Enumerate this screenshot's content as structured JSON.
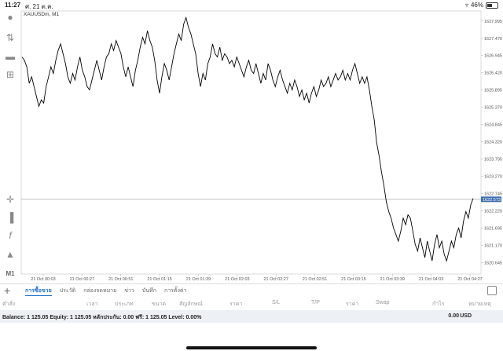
{
  "statusbar": {
    "time": "11:27",
    "date": "ศ. 21 ต.ค.",
    "battery": "46%"
  },
  "chart": {
    "symbol_label": "XAUUSDm, M1",
    "current_price": "1622.573",
    "line_color": "#000000",
    "price_tag_color": "#3e6fb0"
  },
  "chart_data": {
    "type": "line",
    "title": "",
    "symbol": "XAUUSDm, M1",
    "ylim": [
      1620.3,
      1628.3
    ],
    "yticks": [
      "1627.995",
      "1627.470",
      "1626.945",
      "1626.420",
      "1625.895",
      "1625.370",
      "1624.845",
      "1624.320",
      "1623.795",
      "1623.270",
      "1622.745",
      "1622.220",
      "1621.695",
      "1621.170",
      "1620.645"
    ],
    "xticks": [
      "21 Oct 00:03",
      "21 Oct 00:27",
      "21 Oct 00:51",
      "21 Oct 01:15",
      "21 Oct 01:39",
      "21 Oct 02:03",
      "21 Oct 02:27",
      "21 Oct 02:51",
      "21 Oct 03:15",
      "21 Oct 03:39",
      "21 Oct 04:03",
      "21 Oct 04:27"
    ],
    "current_price": 1622.573,
    "values": [
      1626.9,
      1626.8,
      1626.6,
      1626.1,
      1626.3,
      1626.0,
      1625.7,
      1625.4,
      1625.6,
      1625.5,
      1626.0,
      1626.3,
      1626.6,
      1626.4,
      1626.8,
      1627.1,
      1627.3,
      1627.0,
      1626.7,
      1626.3,
      1626.1,
      1626.4,
      1626.2,
      1626.6,
      1626.9,
      1626.5,
      1626.3,
      1626.0,
      1625.9,
      1626.2,
      1626.5,
      1626.8,
      1626.5,
      1626.2,
      1626.6,
      1626.9,
      1627.0,
      1627.3,
      1627.1,
      1627.4,
      1627.2,
      1627.0,
      1626.6,
      1626.3,
      1626.6,
      1626.3,
      1626.0,
      1626.5,
      1626.8,
      1627.2,
      1627.5,
      1627.3,
      1627.7,
      1627.4,
      1627.2,
      1626.8,
      1626.2,
      1625.8,
      1626.3,
      1626.7,
      1626.5,
      1626.2,
      1626.6,
      1627.0,
      1627.3,
      1627.6,
      1627.4,
      1627.9,
      1628.1,
      1627.8,
      1627.6,
      1627.3,
      1627.0,
      1626.4,
      1626.0,
      1626.4,
      1626.2,
      1626.7,
      1626.9,
      1627.3,
      1627.0,
      1626.9,
      1627.2,
      1626.8,
      1627.0,
      1626.9,
      1626.7,
      1626.8,
      1626.6,
      1626.9,
      1626.7,
      1626.5,
      1626.3,
      1626.6,
      1626.8,
      1626.5,
      1626.4,
      1626.7,
      1626.4,
      1626.1,
      1626.4,
      1626.2,
      1626.7,
      1626.5,
      1626.2,
      1626.0,
      1626.3,
      1626.5,
      1626.2,
      1626.0,
      1625.8,
      1626.1,
      1625.9,
      1626.2,
      1626.0,
      1625.7,
      1625.9,
      1625.6,
      1625.8,
      1625.5,
      1625.8,
      1626.0,
      1625.7,
      1625.9,
      1626.2,
      1626.0,
      1626.1,
      1626.3,
      1626.0,
      1626.2,
      1626.4,
      1626.2,
      1626.3,
      1626.5,
      1626.2,
      1626.4,
      1626.2,
      1626.5,
      1626.7,
      1626.4,
      1626.1,
      1626.3,
      1626.1,
      1626.3,
      1625.9,
      1625.4,
      1625.0,
      1624.3,
      1623.9,
      1623.4,
      1623.0,
      1622.5,
      1622.2,
      1622.0,
      1621.7,
      1621.5,
      1621.3,
      1621.6,
      1622.0,
      1621.8,
      1622.1,
      1622.0,
      1621.6,
      1621.2,
      1621.0,
      1621.4,
      1621.1,
      1620.8,
      1621.3,
      1621.0,
      1620.7,
      1621.2,
      1621.5,
      1621.1,
      1621.3,
      1620.9,
      1620.7,
      1621.0,
      1621.3,
      1621.1,
      1621.5,
      1621.7,
      1621.4,
      1621.9,
      1622.2,
      1622.0,
      1622.4,
      1622.6
    ]
  },
  "tabs": [
    {
      "label": "การซื้อขาย",
      "active": true
    },
    {
      "label": "ประวัติ",
      "active": false
    },
    {
      "label": "กล่องจดหมาย",
      "active": false
    },
    {
      "label": "ข่าว",
      "active": false
    },
    {
      "label": "บันทึก",
      "active": false
    },
    {
      "label": "การตั้งค่า",
      "active": false
    }
  ],
  "columns": [
    "คำสั่ง",
    "เวลา",
    "ประเภท",
    "ขนาด",
    "สัญลักษณ์",
    "ราคา",
    "S/L",
    "T/P",
    "ราคา",
    "Swap",
    "กำไร",
    "หมายเหตุ"
  ],
  "balance": {
    "text": "Balance: 1 125.05 Equity: 1 125.05 หลักประกัน: 0.00 ฟรี: 1 125.05 Level: 0.00%",
    "profit": "0.00",
    "currency": "USD"
  },
  "toolbar_icons": [
    "account-icon",
    "trade-icon",
    "chat-icon",
    "add-chart-icon",
    "crosshair-icon",
    "candles-icon",
    "indicator-icon",
    "objects-icon",
    "timeframe-icon"
  ],
  "timeframe_label": "M1"
}
